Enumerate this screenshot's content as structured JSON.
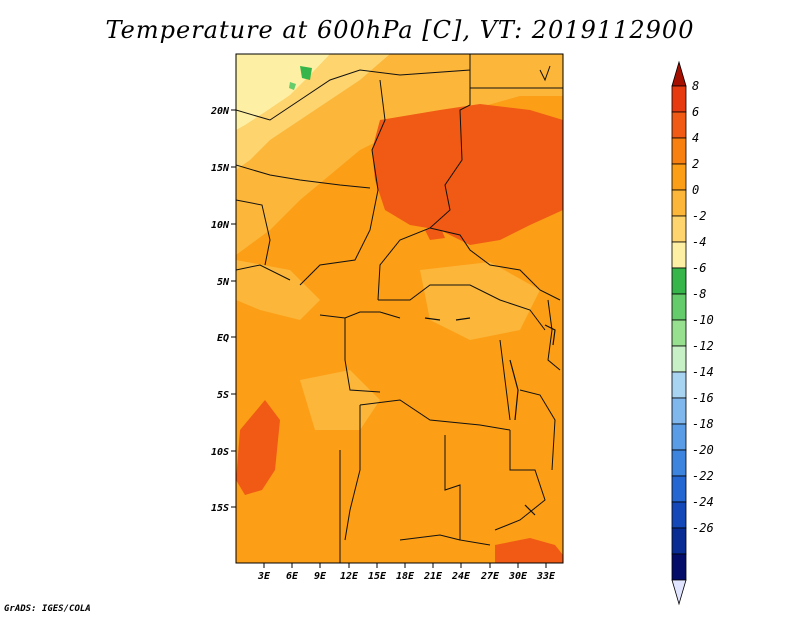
{
  "title": "Temperature at 600hPa [C], VT: 2019112900",
  "credit": "GrADS: IGES/COLA",
  "map": {
    "lat_ticks": [
      "20N",
      "15N",
      "10N",
      "5N",
      "EQ",
      "5S",
      "10S",
      "15S"
    ],
    "lon_ticks": [
      "3E",
      "6E",
      "9E",
      "12E",
      "15E",
      "18E",
      "21E",
      "24E",
      "27E",
      "30E",
      "33E"
    ]
  },
  "colorbar": {
    "labels": [
      "8",
      "6",
      "4",
      "2",
      "0",
      "-2",
      "-4",
      "-6",
      "-8",
      "-10",
      "-12",
      "-14",
      "-16",
      "-18",
      "-20",
      "-22",
      "-24",
      "-26"
    ],
    "colors": [
      "#a50f00",
      "#e83a10",
      "#f05a14",
      "#f88010",
      "#fc9e16",
      "#fcb63a",
      "#fdd46e",
      "#fdf0a4",
      "#36b54a",
      "#64cc6a",
      "#96e090",
      "#c8f0c6",
      "#a8d4f2",
      "#80b8ee",
      "#5a9ce6",
      "#3c84de",
      "#2466d2",
      "#1448b8",
      "#082c94",
      "#040c6a",
      "#e0e4ff"
    ]
  }
}
